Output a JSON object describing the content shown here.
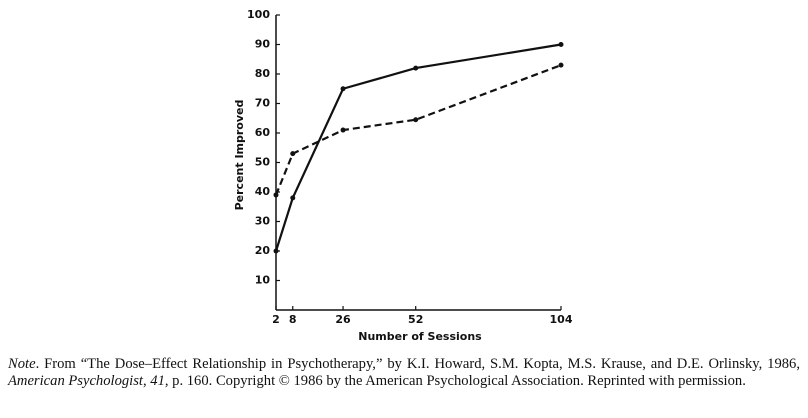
{
  "chart_data": {
    "type": "line",
    "ylabel": "Percent Improved",
    "xlabel": "Number of Sessions",
    "x": [
      2,
      8,
      26,
      52,
      104
    ],
    "series": [
      {
        "color": "#111111",
        "dashed": false,
        "values": [
          20,
          38,
          75,
          82,
          90
        ]
      },
      {
        "color": "#111111",
        "dashed": true,
        "values": [
          39,
          53,
          61,
          64.5,
          83
        ]
      }
    ],
    "xlim": [
      2,
      104
    ],
    "xticks": [
      2,
      8,
      26,
      52,
      104
    ],
    "ylim": [
      0,
      100
    ],
    "yticks": [
      10,
      20,
      30,
      40,
      50,
      60,
      70,
      80,
      90,
      100
    ],
    "grid": false
  },
  "note": {
    "segments": [
      {
        "text": "Note",
        "italic": true
      },
      {
        "text": ". From “The Dose–Effect Relationship in Psychotherapy,” by K.I. Howard, S.M. Kopta, M.S. Krause, and D.E. Orlinsky, 1986, ",
        "italic": false
      },
      {
        "text": "American Psychologist",
        "italic": true
      },
      {
        "text": ", ",
        "italic": false
      },
      {
        "text": "41",
        "italic": true
      },
      {
        "text": ", p. 160. Copyright © 1986 by the American Psychological Association. Reprinted with permission.",
        "italic": false
      }
    ]
  }
}
